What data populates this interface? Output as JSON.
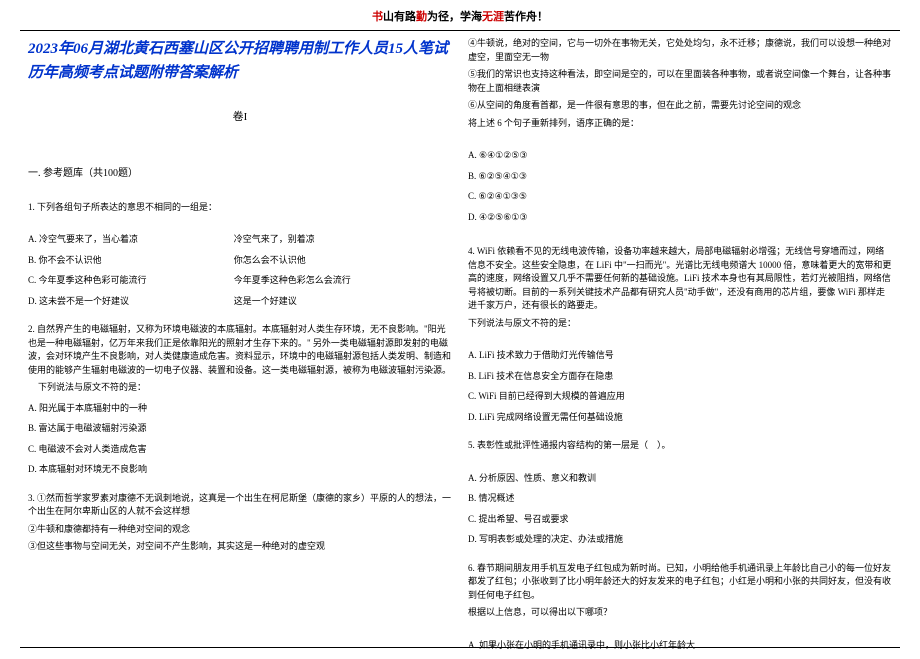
{
  "header": {
    "seg1": "书",
    "seg2": "山有路",
    "seg3": "勤",
    "seg4": "为径，学海",
    "seg5": "无涯",
    "seg6": "苦作舟！"
  },
  "title": "2023年06月湖北黄石西塞山区公开招聘聘用制工作人员15人笔试历年高频考点试题附带答案解析",
  "juan": "卷I",
  "section": "一. 参考题库（共100题）",
  "q1": {
    "stem": "1. 下列各组句子所表达的意思不相同的一组是：",
    "a1": "A. 冷空气要来了，当心着凉",
    "a2": "冷空气来了，别着凉",
    "b1": "B. 你不会不认识他",
    "b2": "你怎么会不认识他",
    "c1": "C. 今年夏季这种色彩可能流行",
    "c2": "今年夏季这种色彩怎么会流行",
    "d1": "D. 这未尝不是一个好建议",
    "d2": "这是一个好建议"
  },
  "q2": {
    "stem": "2. 自然界产生的电磁辐射，又称为环境电磁波的本底辐射。本底辐射对人类生存环境，无不良影响。\"阳光也是一种电磁辐射，亿万年来我们正是依靠阳光的照射才生存下来的。\" 另外一类电磁辐射源即发射的电磁波，会对环境产生不良影响，对人类健康造成危害。资料显示，环境中的电磁辐射源包括人类发明、制造和使用的能够产生辐射电磁波的一切电子仪器、装置和设备。这一类电磁辐射源，被称为电磁波辐射污染源。",
    "prompt": "下列说法与原文不符的是：",
    "a": "A. 阳光属于本底辐射中的一种",
    "b": "B. 雷达属于电磁波辐射污染源",
    "c": "C. 电磁波不会对人类造成危害",
    "d": "D. 本底辐射对环境无不良影响"
  },
  "q3": {
    "stem": "3. ①然而哲学家罗素对康德不无讽刺地说，这真是一个出生在柯尼斯堡（康德的家乡）平原的人的想法，一个出生在阿尔卑斯山区的人就不会这样想",
    "l2": "②牛顿和康德都持有一种绝对空间的观念",
    "l3": "③但这些事物与空间无关，对空间不产生影响，其实这是一种绝对的虚空观",
    "l4": "④牛顿说，绝对的空间，它与一切外在事物无关，它处处均匀，永不迁移；康德说，我们可以设想一种绝对虚空，里面空无一物",
    "l5": "⑤我们的常识也支持这种看法，即空间是空的，可以在里面装各种事物，或者说空间像一个舞台，让各种事物在上面相继表演",
    "l6": "⑥从空间的角度看首都，是一件很有意思的事，但在此之前，需要先讨论空间的观念",
    "ask": "将上述 6 个句子重新排列，语序正确的是：",
    "a": "A. ⑥④①②⑤③",
    "b": "B. ⑥②⑤④①③",
    "c": "C. ⑥②④①③⑤",
    "d": "D. ④②⑤⑥①③"
  },
  "q4": {
    "stem": "4. WiFi 依赖看不见的无线电波传输，设备功率越来越大，局部电磁辐射必增强；无线信号穿墙而过，网络信息不安全。这些安全隐患，在 LiFi 中\"一扫而光\"。光谱比无线电频谱大 10000 倍，意味着更大的宽带和更高的速度，网络设置又几乎不需要任何新的基础设施。LiFi 技术本身也有其局限性，若灯光被阻挡，网络信号将被切断。目前的一系列关键技术产品都有研究人员\"动手做\"，还没有商用的芯片组，要像 WiFi 那样走进千家万户，还有很长的路要走。",
    "prompt": "下列说法与原文不符的是：",
    "a": "A. LiFi 技术致力于借助灯光传输信号",
    "b": "B. LiFi 技术在信息安全方面存在隐患",
    "c": "C. WiFi 目前已经得到大规模的普遍应用",
    "d": "D. LiFi 完成网络设置无需任何基础设施"
  },
  "q5": {
    "stem": "5. 表彰性或批评性通报内容结构的第一层是（　）。",
    "a": "A. 分析原因、性质、意义和教训",
    "b": "B. 情况概述",
    "c": "C. 提出希望、号召或要求",
    "d": "D. 写明表彰或处理的决定、办法或措施"
  },
  "q6": {
    "stem": "6. 春节期间朋友用手机互发电子红包成为新时尚。已知，小明给他手机通讯录上年龄比自己小的每一位好友都发了红包；小张收到了比小明年龄还大的好友发来的电子红包；小红是小明和小张的共同好友，但没有收到任何电子红包。",
    "ask": "根据以上信息，可以得出以下哪项？",
    "a": "A. 如果小张在小明的手机通讯录中，则小张比小红年龄大"
  }
}
